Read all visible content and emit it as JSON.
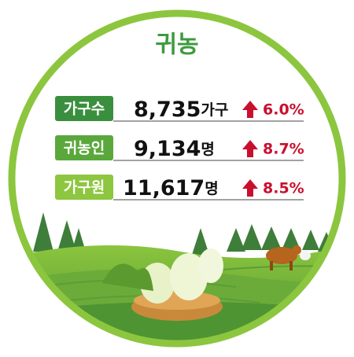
{
  "title": "귀농",
  "rows": [
    {
      "label": "가구수",
      "value": "8,735",
      "unit": "가구",
      "change": "6.0%"
    },
    {
      "label": "귀농인",
      "value": "9,134",
      "unit": "명",
      "change": "8.7%"
    },
    {
      "label": "가구원",
      "value": "11,617",
      "unit": "명",
      "change": "8.5%"
    }
  ]
}
